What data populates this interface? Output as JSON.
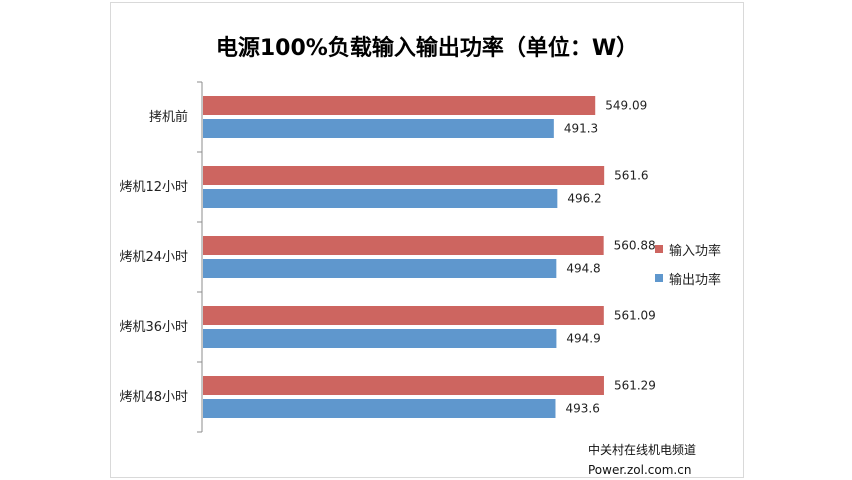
{
  "chart_data": {
    "type": "bar",
    "orientation": "horizontal",
    "title": "电源100%负载输入输出功率（单位：W）",
    "categories": [
      "拷机前",
      "烤机12小时",
      "烤机24小时",
      "烤机36小时",
      "烤机48小时"
    ],
    "value_labels": [
      [
        "549.09",
        "491.3"
      ],
      [
        "561.6",
        "496.2"
      ],
      [
        "560.88",
        "494.8"
      ],
      [
        "561.09",
        "494.9"
      ],
      [
        "561.29",
        "493.6"
      ]
    ],
    "series": [
      {
        "name": "输入功率",
        "color": "#cd6560",
        "values": [
          549.09,
          561.6,
          560.88,
          561.09,
          561.29
        ]
      },
      {
        "name": "输出功率",
        "color": "#5f97cd",
        "values": [
          491.3,
          496.2,
          494.8,
          494.9,
          493.6
        ]
      }
    ],
    "xlim": [
      0,
      620
    ],
    "grid": false,
    "legend_position": "right"
  },
  "watermark": {
    "line1": "中关村在线机电频道",
    "line2": "Power.zol.com.cn"
  }
}
